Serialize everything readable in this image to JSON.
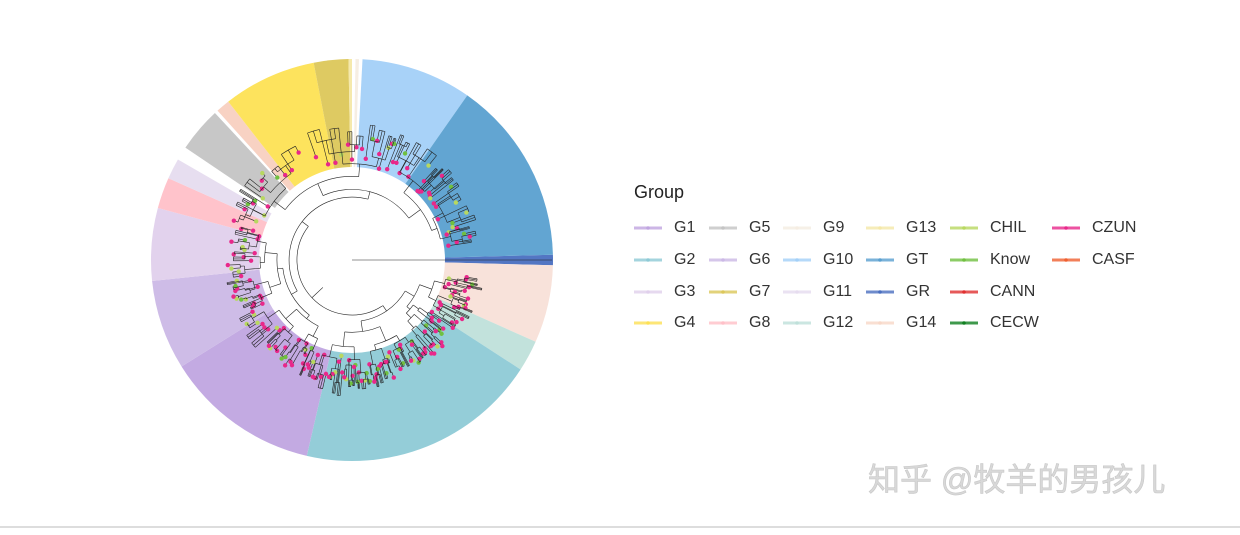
{
  "legend": {
    "title": "Group",
    "items": [
      {
        "label": "G1",
        "color": "#c0a5e0"
      },
      {
        "label": "G2",
        "color": "#8ecad6"
      },
      {
        "label": "G3",
        "color": "#e0d0ec"
      },
      {
        "label": "G4",
        "color": "#fde154"
      },
      {
        "label": "G5",
        "color": "#c4c4c4"
      },
      {
        "label": "G6",
        "color": "#cbb8e6"
      },
      {
        "label": "G7",
        "color": "#dcc75a"
      },
      {
        "label": "G8",
        "color": "#ffc0c8"
      },
      {
        "label": "G9",
        "color": "#f5ede2"
      },
      {
        "label": "G10",
        "color": "#a3d0f8"
      },
      {
        "label": "G11",
        "color": "#e6dcef"
      },
      {
        "label": "G12",
        "color": "#bfe0da"
      },
      {
        "label": "G13",
        "color": "#f4e8a8"
      },
      {
        "label": "GT",
        "color": "#5aa0d0"
      },
      {
        "label": "GR",
        "color": "#4a6fc0"
      },
      {
        "label": "G14",
        "color": "#f8d8c8"
      },
      {
        "label": "CHIL",
        "color": "#b8d860"
      },
      {
        "label": "Know",
        "color": "#70c040"
      },
      {
        "label": "CANN",
        "color": "#e03030"
      },
      {
        "label": "CECW",
        "color": "#108020"
      },
      {
        "label": "CZUN",
        "color": "#e8288a"
      },
      {
        "label": "CASF",
        "color": "#f06030"
      }
    ]
  },
  "watermark": "知乎 @牧羊的男孩儿"
}
